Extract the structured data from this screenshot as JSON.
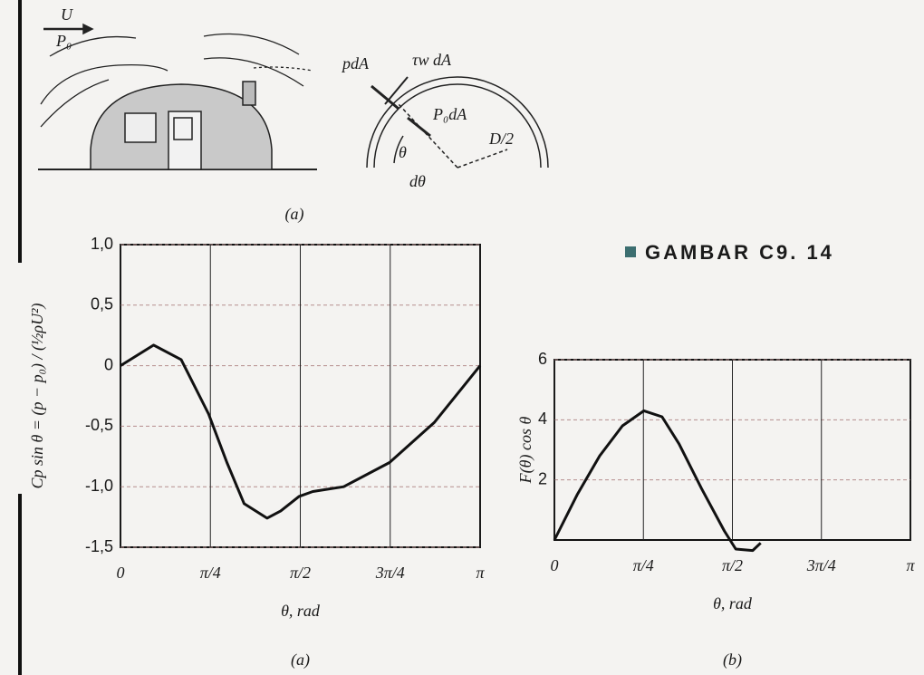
{
  "figure_label": "GAMBAR C9. 14",
  "diagram": {
    "caption": "(a)",
    "labels": [
      "U",
      "P₀",
      "pdA",
      "τw dA",
      "P₀dA",
      "θ",
      "dθ",
      "D/2"
    ]
  },
  "chart_data": [
    {
      "type": "line",
      "caption": "(a)",
      "xlabel": "θ, rad",
      "ylabel": "Cp sin θ = (p − p₀) / (½ρU²)",
      "x": [
        0,
        0.29,
        0.53,
        0.77,
        0.93,
        1.08,
        1.28,
        1.4,
        1.56,
        1.68,
        1.95,
        2.35,
        2.74,
        3.1416
      ],
      "values": [
        0,
        0.17,
        0.05,
        -0.4,
        -0.8,
        -1.14,
        -1.26,
        -1.2,
        -1.08,
        -1.04,
        -1.0,
        -0.8,
        -0.47,
        0
      ],
      "color": "#111111",
      "xlim": [
        0,
        3.1416
      ],
      "xticks": [
        0,
        {
          "value": 0.7854,
          "label": "π/4"
        },
        {
          "value": 1.5708,
          "label": "π/2"
        },
        {
          "value": 2.3562,
          "label": "3π/4"
        },
        {
          "value": 3.1416,
          "label": "π"
        }
      ],
      "ylim": [
        -1.5,
        1.0
      ],
      "yticks": [
        {
          "value": -1.5,
          "label": "-1,5"
        },
        {
          "value": -1.0,
          "label": "-1,0"
        },
        {
          "value": -0.5,
          "label": "-0,5"
        },
        0,
        {
          "value": 0.5,
          "label": "0,5"
        },
        {
          "value": 1.0,
          "label": "1,0"
        }
      ],
      "grid": true
    },
    {
      "type": "line",
      "caption": "(b)",
      "xlabel": "θ, rad",
      "ylabel": "F(θ) cos θ",
      "x": [
        0,
        0.2,
        0.4,
        0.6,
        0.79,
        0.95,
        1.1,
        1.3,
        1.5,
        1.6,
        1.75,
        1.82
      ],
      "values": [
        0,
        1.5,
        2.8,
        3.8,
        4.3,
        4.1,
        3.2,
        1.7,
        0.3,
        -0.3,
        -0.35,
        -0.1
      ],
      "color": "#111111",
      "xlim": [
        0,
        3.1416
      ],
      "xticks": [
        0,
        {
          "value": 0.7854,
          "label": "π/4"
        },
        {
          "value": 1.5708,
          "label": "π/2"
        },
        {
          "value": 2.3562,
          "label": "3π/4"
        },
        {
          "value": 3.1416,
          "label": "π"
        }
      ],
      "ylim": [
        0,
        6
      ],
      "yticks": [
        2,
        4,
        6
      ],
      "grid": true
    }
  ]
}
